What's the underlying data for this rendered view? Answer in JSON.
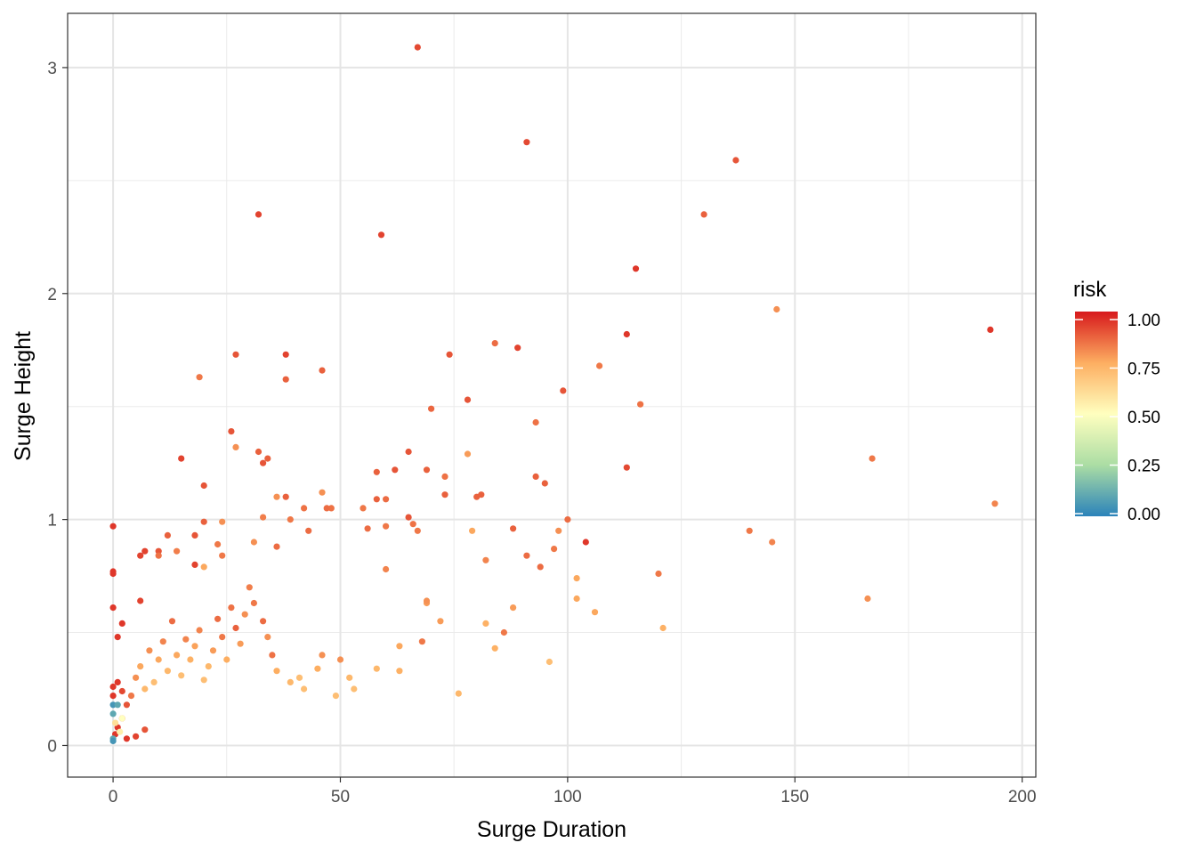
{
  "chart_data": {
    "type": "scatter",
    "xlabel": "Surge Duration",
    "ylabel": "Surge Height",
    "xlim": [
      -10,
      203
    ],
    "ylim": [
      -0.14,
      3.24
    ],
    "x_ticks": [
      0,
      50,
      100,
      150,
      200
    ],
    "y_ticks": [
      0,
      1,
      2,
      3
    ],
    "grid": true,
    "legend": {
      "title": "risk",
      "placement": "right",
      "ticks": [
        1.0,
        0.75,
        0.5,
        0.25,
        0.0
      ],
      "tick_labels": [
        "1.00",
        "0.75",
        "0.50",
        "0.25",
        "0.00"
      ],
      "colors": [
        "#2b83ba",
        "#abdda4",
        "#ffffbf",
        "#fdae61",
        "#d7191c"
      ]
    },
    "points": [
      [
        67,
        3.09,
        0.92
      ],
      [
        91,
        2.67,
        0.92
      ],
      [
        137,
        2.59,
        0.9
      ],
      [
        32,
        2.35,
        0.93
      ],
      [
        130,
        2.35,
        0.88
      ],
      [
        59,
        2.26,
        0.93
      ],
      [
        115,
        2.11,
        0.95
      ],
      [
        146,
        1.93,
        0.8
      ],
      [
        193,
        1.84,
        0.95
      ],
      [
        113,
        1.82,
        0.95
      ],
      [
        84,
        1.78,
        0.86
      ],
      [
        89,
        1.76,
        0.93
      ],
      [
        27,
        1.73,
        0.9
      ],
      [
        38,
        1.73,
        0.93
      ],
      [
        74,
        1.73,
        0.9
      ],
      [
        107,
        1.68,
        0.84
      ],
      [
        46,
        1.66,
        0.88
      ],
      [
        19,
        1.63,
        0.84
      ],
      [
        38,
        1.62,
        0.88
      ],
      [
        99,
        1.57,
        0.9
      ],
      [
        78,
        1.53,
        0.9
      ],
      [
        116,
        1.51,
        0.85
      ],
      [
        70,
        1.49,
        0.87
      ],
      [
        93,
        1.43,
        0.85
      ],
      [
        26,
        1.39,
        0.9
      ],
      [
        27,
        1.32,
        0.8
      ],
      [
        65,
        1.3,
        0.9
      ],
      [
        32,
        1.3,
        0.88
      ],
      [
        78,
        1.29,
        0.78
      ],
      [
        15,
        1.27,
        0.93
      ],
      [
        34,
        1.27,
        0.88
      ],
      [
        167,
        1.27,
        0.84
      ],
      [
        33,
        1.25,
        0.9
      ],
      [
        69,
        1.22,
        0.88
      ],
      [
        62,
        1.22,
        0.9
      ],
      [
        113,
        1.23,
        0.92
      ],
      [
        58,
        1.21,
        0.88
      ],
      [
        93,
        1.19,
        0.88
      ],
      [
        73,
        1.19,
        0.85
      ],
      [
        95,
        1.16,
        0.88
      ],
      [
        20,
        1.15,
        0.9
      ],
      [
        46,
        1.12,
        0.8
      ],
      [
        81,
        1.11,
        0.88
      ],
      [
        73,
        1.11,
        0.88
      ],
      [
        80,
        1.1,
        0.88
      ],
      [
        36,
        1.1,
        0.8
      ],
      [
        38,
        1.1,
        0.88
      ],
      [
        58,
        1.09,
        0.88
      ],
      [
        60,
        1.09,
        0.86
      ],
      [
        194,
        1.07,
        0.82
      ],
      [
        48,
        1.05,
        0.85
      ],
      [
        47,
        1.05,
        0.86
      ],
      [
        55,
        1.05,
        0.84
      ],
      [
        42,
        1.05,
        0.85
      ],
      [
        33,
        1.01,
        0.83
      ],
      [
        65,
        1.01,
        0.9
      ],
      [
        100,
        1.0,
        0.86
      ],
      [
        39,
        1.0,
        0.84
      ],
      [
        24,
        0.99,
        0.8
      ],
      [
        20,
        0.99,
        0.88
      ],
      [
        66,
        0.98,
        0.85
      ],
      [
        0,
        0.97,
        0.95
      ],
      [
        60,
        0.97,
        0.84
      ],
      [
        56,
        0.96,
        0.86
      ],
      [
        88,
        0.96,
        0.88
      ],
      [
        140,
        0.95,
        0.84
      ],
      [
        79,
        0.95,
        0.76
      ],
      [
        98,
        0.95,
        0.8
      ],
      [
        67,
        0.95,
        0.84
      ],
      [
        43,
        0.95,
        0.86
      ],
      [
        12,
        0.93,
        0.88
      ],
      [
        18,
        0.93,
        0.9
      ],
      [
        104,
        0.9,
        0.95
      ],
      [
        145,
        0.9,
        0.82
      ],
      [
        31,
        0.9,
        0.8
      ],
      [
        23,
        0.89,
        0.84
      ],
      [
        36,
        0.88,
        0.86
      ],
      [
        7,
        0.86,
        0.93
      ],
      [
        10,
        0.86,
        0.9
      ],
      [
        14,
        0.86,
        0.83
      ],
      [
        97,
        0.87,
        0.84
      ],
      [
        6,
        0.84,
        0.93
      ],
      [
        10,
        0.84,
        0.85
      ],
      [
        91,
        0.84,
        0.86
      ],
      [
        24,
        0.84,
        0.84
      ],
      [
        82,
        0.82,
        0.82
      ],
      [
        18,
        0.8,
        0.93
      ],
      [
        20,
        0.79,
        0.76
      ],
      [
        94,
        0.79,
        0.86
      ],
      [
        0,
        0.77,
        0.95
      ],
      [
        0,
        0.76,
        0.95
      ],
      [
        120,
        0.76,
        0.84
      ],
      [
        102,
        0.74,
        0.76
      ],
      [
        60,
        0.78,
        0.82
      ],
      [
        6,
        0.64,
        0.93
      ],
      [
        0,
        0.61,
        0.95
      ],
      [
        69,
        0.63,
        0.78
      ],
      [
        69,
        0.64,
        0.8
      ],
      [
        166,
        0.65,
        0.8
      ],
      [
        102,
        0.65,
        0.76
      ],
      [
        106,
        0.59,
        0.76
      ],
      [
        88,
        0.61,
        0.78
      ],
      [
        72,
        0.55,
        0.78
      ],
      [
        82,
        0.54,
        0.74
      ],
      [
        121,
        0.52,
        0.74
      ],
      [
        86,
        0.5,
        0.84
      ],
      [
        1,
        0.48,
        0.95
      ],
      [
        2,
        0.54,
        0.95
      ],
      [
        68,
        0.46,
        0.84
      ],
      [
        84,
        0.43,
        0.74
      ],
      [
        96,
        0.37,
        0.7
      ],
      [
        76,
        0.23,
        0.72
      ],
      [
        63,
        0.44,
        0.76
      ],
      [
        63,
        0.33,
        0.74
      ],
      [
        58,
        0.34,
        0.72
      ],
      [
        50,
        0.38,
        0.8
      ],
      [
        52,
        0.3,
        0.72
      ],
      [
        53,
        0.25,
        0.7
      ],
      [
        49,
        0.22,
        0.7
      ],
      [
        45,
        0.34,
        0.75
      ],
      [
        46,
        0.4,
        0.8
      ],
      [
        41,
        0.3,
        0.7
      ],
      [
        42,
        0.25,
        0.7
      ],
      [
        39,
        0.28,
        0.72
      ],
      [
        36,
        0.33,
        0.75
      ],
      [
        35,
        0.4,
        0.85
      ],
      [
        34,
        0.48,
        0.8
      ],
      [
        33,
        0.55,
        0.86
      ],
      [
        31,
        0.63,
        0.84
      ],
      [
        30,
        0.7,
        0.83
      ],
      [
        29,
        0.58,
        0.8
      ],
      [
        28,
        0.45,
        0.78
      ],
      [
        27,
        0.52,
        0.88
      ],
      [
        26,
        0.61,
        0.85
      ],
      [
        25,
        0.38,
        0.75
      ],
      [
        24,
        0.48,
        0.84
      ],
      [
        23,
        0.56,
        0.86
      ],
      [
        22,
        0.42,
        0.78
      ],
      [
        21,
        0.35,
        0.72
      ],
      [
        20,
        0.29,
        0.7
      ],
      [
        19,
        0.51,
        0.82
      ],
      [
        18,
        0.44,
        0.77
      ],
      [
        17,
        0.38,
        0.74
      ],
      [
        16,
        0.47,
        0.82
      ],
      [
        15,
        0.31,
        0.7
      ],
      [
        14,
        0.4,
        0.76
      ],
      [
        13,
        0.55,
        0.86
      ],
      [
        12,
        0.33,
        0.72
      ],
      [
        11,
        0.46,
        0.82
      ],
      [
        10,
        0.38,
        0.76
      ],
      [
        9,
        0.28,
        0.7
      ],
      [
        8,
        0.42,
        0.8
      ],
      [
        7,
        0.25,
        0.72
      ],
      [
        6,
        0.35,
        0.76
      ],
      [
        5,
        0.3,
        0.8
      ],
      [
        4,
        0.22,
        0.84
      ],
      [
        3,
        0.18,
        0.9
      ],
      [
        2,
        0.12,
        0.92
      ],
      [
        1,
        0.08,
        0.95
      ],
      [
        0.5,
        0.05,
        0.95
      ],
      [
        0,
        0.18,
        0.05
      ],
      [
        1,
        0.18,
        0.1
      ],
      [
        0,
        0.14,
        0.1
      ],
      [
        0.5,
        0.1,
        0.6
      ],
      [
        1.5,
        0.06,
        0.55
      ],
      [
        0,
        0.03,
        0.1
      ],
      [
        0,
        0.02,
        0.05
      ],
      [
        2,
        0.12,
        0.5
      ],
      [
        1,
        0.28,
        0.95
      ],
      [
        2,
        0.24,
        0.92
      ],
      [
        0,
        0.26,
        0.95
      ],
      [
        0,
        0.22,
        0.95
      ],
      [
        3,
        0.03,
        0.95
      ],
      [
        5,
        0.04,
        0.93
      ],
      [
        7,
        0.07,
        0.9
      ]
    ]
  }
}
